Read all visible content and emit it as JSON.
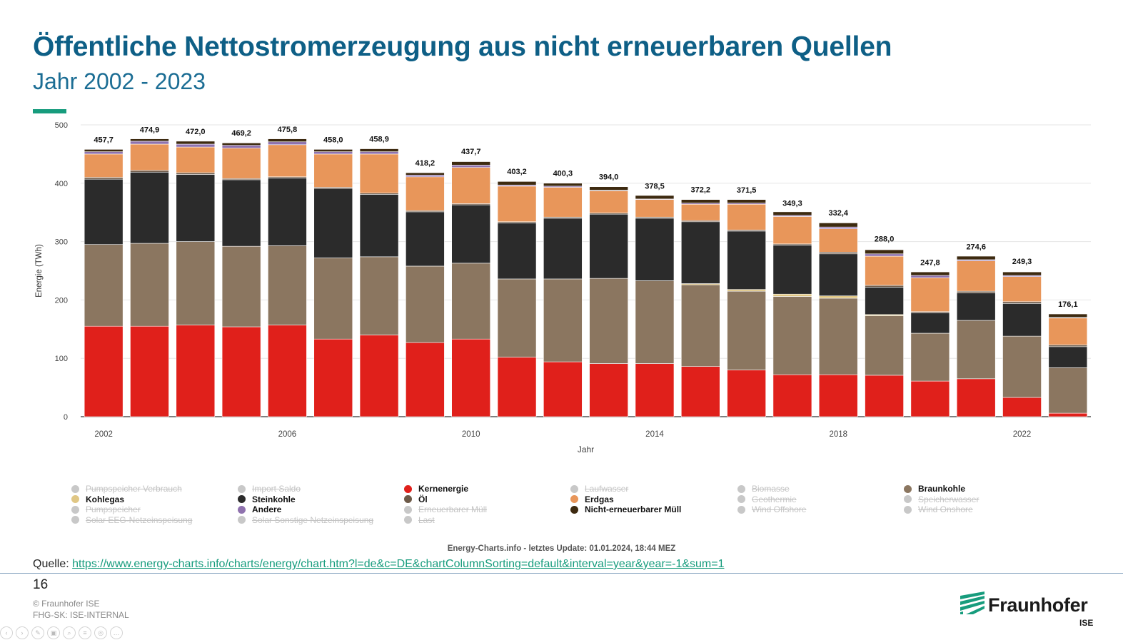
{
  "slide": {
    "title": "Öffentliche Nettostromerzeugung aus nicht erneuerbaren Quellen",
    "subtitle": "Jahr 2002 - 2023",
    "credit": "Energy-Charts.info - letztes Update: 01.01.2024, 18:44 MEZ",
    "source_label": "Quelle: ",
    "source_url": "https://www.energy-charts.info/charts/energy/chart.htm?l=de&c=DE&chartColumnSorting=default&interval=year&year=-1&sum=1",
    "page_number": "16",
    "copyright": "© Fraunhofer ISE",
    "classification": "FHG-SK: ISE-INTERNAL",
    "logo_name": "Fraunhofer",
    "logo_sub": "ISE"
  },
  "legend": [
    {
      "label": "Pumpspeicher Verbrauch",
      "color": "#c8c8c8",
      "active": false
    },
    {
      "label": "Import Saldo",
      "color": "#c8c8c8",
      "active": false
    },
    {
      "label": "Kernenergie",
      "color": "#e0201b",
      "active": true
    },
    {
      "label": "Laufwasser",
      "color": "#c8c8c8",
      "active": false
    },
    {
      "label": "Biomasse",
      "color": "#c8c8c8",
      "active": false
    },
    {
      "label": "Braunkohle",
      "color": "#8b7660",
      "active": true
    },
    {
      "label": "Kohlegas",
      "color": "#e0c785",
      "active": true
    },
    {
      "label": "Steinkohle",
      "color": "#2b2b2b",
      "active": true
    },
    {
      "label": "Öl",
      "color": "#6d5a48",
      "active": true
    },
    {
      "label": "Erdgas",
      "color": "#e8965a",
      "active": true
    },
    {
      "label": "Geothermie",
      "color": "#c8c8c8",
      "active": false
    },
    {
      "label": "Speicherwasser",
      "color": "#c8c8c8",
      "active": false
    },
    {
      "label": "Pumpspeicher",
      "color": "#c8c8c8",
      "active": false
    },
    {
      "label": "Andere",
      "color": "#8f72ae",
      "active": true
    },
    {
      "label": "Erneuerbarer Müll",
      "color": "#c8c8c8",
      "active": false
    },
    {
      "label": "Nicht-erneuerbarer Müll",
      "color": "#3d2a10",
      "active": true
    },
    {
      "label": "Wind Offshore",
      "color": "#c8c8c8",
      "active": false
    },
    {
      "label": "Wind Onshore",
      "color": "#c8c8c8",
      "active": false
    },
    {
      "label": "Solar EEG-Netzeinspeisung",
      "color": "#c8c8c8",
      "active": false
    },
    {
      "label": "Solar Sonstige Netzeinspeisung",
      "color": "#c8c8c8",
      "active": false
    },
    {
      "label": "Last",
      "color": "#c8c8c8",
      "active": false
    }
  ],
  "chart_data": {
    "type": "bar",
    "stacked": true,
    "xlabel": "Jahr",
    "ylabel": "Energie (TWh)",
    "ylim": [
      0,
      500
    ],
    "yticks": [
      0,
      100,
      200,
      300,
      400,
      500
    ],
    "xticks": [
      "2002",
      "2006",
      "2010",
      "2014",
      "2018",
      "2022"
    ],
    "categories": [
      "2002",
      "2003",
      "2004",
      "2005",
      "2006",
      "2007",
      "2008",
      "2009",
      "2010",
      "2011",
      "2012",
      "2013",
      "2014",
      "2015",
      "2016",
      "2017",
      "2018",
      "2019",
      "2020",
      "2021",
      "2022",
      "2023"
    ],
    "totals": [
      "457,7",
      "474,9",
      "472,0",
      "469,2",
      "475,8",
      "458,0",
      "458,9",
      "418,2",
      "437,7",
      "403,2",
      "400,3",
      "394,0",
      "378,5",
      "372,2",
      "371,5",
      "349,3",
      "332,4",
      "288,0",
      "247,8",
      "274,6",
      "249,3",
      "176,1"
    ],
    "series": [
      {
        "name": "Kernenergie",
        "color": "#e0201b",
        "values": [
          155,
          155,
          157,
          154,
          157,
          133,
          140,
          127,
          133,
          102,
          94,
          91,
          91,
          86,
          80,
          72,
          72,
          71,
          61,
          65,
          33,
          6
        ]
      },
      {
        "name": "Braunkohle",
        "color": "#8b7660",
        "values": [
          140,
          142,
          143,
          138,
          136,
          139,
          134,
          131,
          130,
          134,
          142,
          146,
          142,
          140,
          135,
          134,
          131,
          102,
          82,
          100,
          105,
          78
        ]
      },
      {
        "name": "Kohlegas",
        "color": "#e0c785",
        "values": [
          0,
          0,
          0,
          0,
          0,
          0,
          0,
          0,
          0,
          0,
          0,
          0,
          0,
          2,
          3,
          4,
          4,
          2,
          0,
          0,
          0,
          0
        ]
      },
      {
        "name": "Steinkohle",
        "color": "#2b2b2b",
        "values": [
          112,
          122,
          115,
          114,
          116,
          119,
          107,
          93,
          100,
          96,
          104,
          110,
          107,
          106,
          100,
          84,
          72,
          47,
          35,
          47,
          56,
          36
        ]
      },
      {
        "name": "Öl",
        "color": "#6d5a48",
        "values": [
          3,
          3,
          3,
          2,
          2,
          2,
          2,
          2,
          2,
          2,
          2,
          2,
          2,
          2,
          2,
          2,
          3,
          3,
          2,
          3,
          3,
          3
        ]
      },
      {
        "name": "Erdgas",
        "color": "#e8965a",
        "values": [
          40,
          45,
          44,
          52,
          55,
          57,
          67,
          58,
          62,
          61,
          51,
          38,
          30,
          28,
          44,
          47,
          40,
          50,
          58,
          52,
          43,
          46
        ]
      },
      {
        "name": "Andere",
        "color": "#8f72ae",
        "values": [
          4,
          5,
          5,
          5,
          5,
          4,
          4,
          3,
          4,
          2,
          2,
          1,
          1,
          2,
          2,
          2,
          3,
          4,
          4,
          2,
          2,
          1
        ]
      },
      {
        "name": "Nicht-erneuerbarer Müll",
        "color": "#3d2a10",
        "values": [
          4,
          4,
          5,
          4,
          5,
          4,
          5,
          4,
          6,
          6,
          5,
          6,
          6,
          6,
          6,
          6,
          7,
          7,
          6,
          6,
          6,
          6
        ]
      }
    ]
  }
}
